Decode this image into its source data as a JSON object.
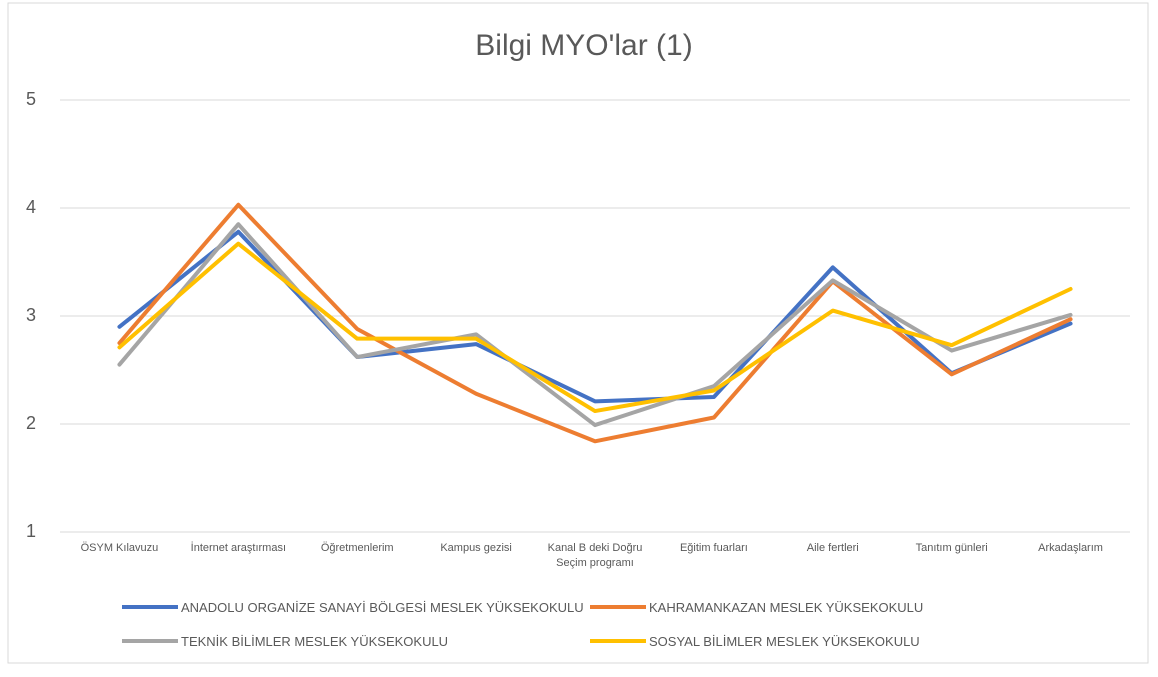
{
  "chart_data": {
    "type": "line",
    "title": "Bilgi MYO'lar (1)",
    "categories": [
      "ÖSYM Kılavuzu",
      "İnternet araştırması",
      "Öğretmenlerim",
      "Kampus gezisi",
      "Kanal B deki Doğru Seçim programı",
      "Eğitim fuarları",
      "Aile fertleri",
      "Tanıtım günleri",
      "Arkadaşlarım"
    ],
    "series": [
      {
        "name": "ANADOLU ORGANİZE SANAYİ BÖLGESİ MESLEK YÜKSEKOKULU",
        "color": "#4472c4",
        "values": [
          2.9,
          3.78,
          2.62,
          2.74,
          2.21,
          2.25,
          3.45,
          2.47,
          2.93
        ]
      },
      {
        "name": "KAHRAMANKAZAN MESLEK YÜKSEKOKULU",
        "color": "#ed7d31",
        "values": [
          2.75,
          4.03,
          2.88,
          2.28,
          1.84,
          2.06,
          3.32,
          2.46,
          2.97
        ]
      },
      {
        "name": "TEKNİK BİLİMLER MESLEK YÜKSEKOKULU",
        "color": "#a5a5a5",
        "values": [
          2.55,
          3.85,
          2.62,
          2.83,
          1.99,
          2.35,
          3.33,
          2.68,
          3.01
        ]
      },
      {
        "name": "SOSYAL BİLİMLER MESLEK YÜKSEKOKULU",
        "color": "#ffc000",
        "values": [
          2.71,
          3.67,
          2.79,
          2.79,
          2.12,
          2.31,
          3.05,
          2.73,
          3.25
        ]
      }
    ],
    "ylim": [
      1,
      5
    ],
    "yticks": [
      1,
      2,
      3,
      4,
      5
    ],
    "grid": true,
    "legend": "bottom"
  }
}
